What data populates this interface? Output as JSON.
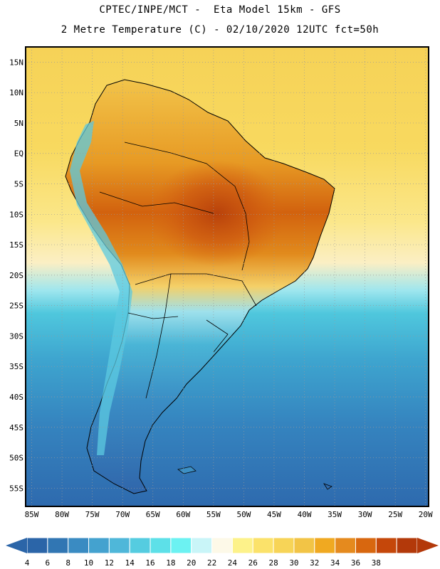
{
  "header": {
    "line1": "CPTEC/INPE/MCT -  Eta Model 15km - GFS",
    "line2": "2 Metre Temperature (C) - 02/10/2020 12UTC fct=50h"
  },
  "axes": {
    "lat_labels": [
      "15N",
      "10N",
      "5N",
      "EQ",
      "5S",
      "10S",
      "15S",
      "20S",
      "25S",
      "30S",
      "35S",
      "40S",
      "45S",
      "50S",
      "55S"
    ],
    "lat_values": [
      15,
      10,
      5,
      0,
      -5,
      -10,
      -15,
      -20,
      -25,
      -30,
      -35,
      -40,
      -45,
      -50,
      -55
    ],
    "lon_labels": [
      "85W",
      "80W",
      "75W",
      "70W",
      "65W",
      "60W",
      "55W",
      "50W",
      "45W",
      "40W",
      "35W",
      "30W",
      "25W",
      "20W"
    ],
    "lon_values": [
      -85,
      -80,
      -75,
      -70,
      -65,
      -60,
      -55,
      -50,
      -45,
      -40,
      -35,
      -30,
      -25,
      -20
    ],
    "lat_range": [
      -58,
      17.5
    ],
    "lon_range": [
      -86,
      -19.5
    ]
  },
  "colorbar": {
    "labels": [
      "4",
      "6",
      "8",
      "10",
      "12",
      "14",
      "16",
      "18",
      "20",
      "22",
      "24",
      "26",
      "28",
      "30",
      "32",
      "34",
      "36",
      "38"
    ],
    "colors": [
      "#2b65a8",
      "#3176b3",
      "#3a8bc2",
      "#44a2cf",
      "#4fb7d9",
      "#55cce0",
      "#5de0e8",
      "#6cf2f2",
      "#c9f5f8",
      "#fdf9e8",
      "#fdf28a",
      "#fbe26a",
      "#f7d457",
      "#f2c446",
      "#f0a921",
      "#e58a1e",
      "#d8670f",
      "#c5470a",
      "#b3390a"
    ],
    "low_arrow_color": "#2b65a8",
    "high_arrow_color": "#b3390a"
  },
  "map": {
    "ocean_north_color": "#f6d257",
    "ocean_south_color": "#3177b4",
    "land_base_color": "#efb63b"
  }
}
